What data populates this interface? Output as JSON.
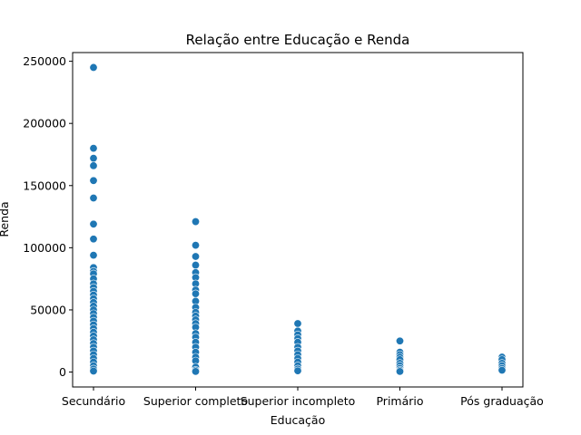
{
  "chart_data": {
    "type": "scatter",
    "title": "Relação entre Educação e Renda",
    "xlabel": "Educação",
    "ylabel": "Renda",
    "categories": [
      "Secundário",
      "Superior completo",
      "Superior incompleto",
      "Primário",
      "Pós graduação"
    ],
    "ylim": [
      -12000,
      257000
    ],
    "yticks": [
      0,
      50000,
      100000,
      150000,
      200000,
      250000
    ],
    "ytick_labels": [
      "0",
      "50000",
      "100000",
      "150000",
      "200000",
      "250000"
    ],
    "grid": false,
    "legend": "none",
    "marker_color": "#1f77b4",
    "series": [
      {
        "points": [
          {
            "x": "Secundário",
            "y": 245000
          },
          {
            "x": "Secundário",
            "y": 180000
          },
          {
            "x": "Secundário",
            "y": 172000
          },
          {
            "x": "Secundário",
            "y": 166000
          },
          {
            "x": "Secundário",
            "y": 154000
          },
          {
            "x": "Secundário",
            "y": 140000
          },
          {
            "x": "Secundário",
            "y": 119000
          },
          {
            "x": "Secundário",
            "y": 107000
          },
          {
            "x": "Secundário",
            "y": 94000
          },
          {
            "x": "Secundário",
            "y": 84000
          },
          {
            "x": "Secundário",
            "y": 81000
          },
          {
            "x": "Secundário",
            "y": 79000
          },
          {
            "x": "Secundário",
            "y": 75000
          },
          {
            "x": "Secundário",
            "y": 71000
          },
          {
            "x": "Secundário",
            "y": 68000
          },
          {
            "x": "Secundário",
            "y": 65000
          },
          {
            "x": "Secundário",
            "y": 62000
          },
          {
            "x": "Secundário",
            "y": 59000
          },
          {
            "x": "Secundário",
            "y": 56000
          },
          {
            "x": "Secundário",
            "y": 53000
          },
          {
            "x": "Secundário",
            "y": 50000
          },
          {
            "x": "Secundário",
            "y": 47000
          },
          {
            "x": "Secundário",
            "y": 44000
          },
          {
            "x": "Secundário",
            "y": 41000
          },
          {
            "x": "Secundário",
            "y": 38000
          },
          {
            "x": "Secundário",
            "y": 35000
          },
          {
            "x": "Secundário",
            "y": 32000
          },
          {
            "x": "Secundário",
            "y": 29000
          },
          {
            "x": "Secundário",
            "y": 26000
          },
          {
            "x": "Secundário",
            "y": 23000
          },
          {
            "x": "Secundário",
            "y": 20000
          },
          {
            "x": "Secundário",
            "y": 17000
          },
          {
            "x": "Secundário",
            "y": 14000
          },
          {
            "x": "Secundário",
            "y": 11000
          },
          {
            "x": "Secundário",
            "y": 8000
          },
          {
            "x": "Secundário",
            "y": 5000
          },
          {
            "x": "Secundário",
            "y": 2500
          },
          {
            "x": "Secundário",
            "y": 800
          },
          {
            "x": "Superior completo",
            "y": 121000
          },
          {
            "x": "Superior completo",
            "y": 102000
          },
          {
            "x": "Superior completo",
            "y": 93000
          },
          {
            "x": "Superior completo",
            "y": 86000
          },
          {
            "x": "Superior completo",
            "y": 80000
          },
          {
            "x": "Superior completo",
            "y": 76000
          },
          {
            "x": "Superior completo",
            "y": 71000
          },
          {
            "x": "Superior completo",
            "y": 66000
          },
          {
            "x": "Superior completo",
            "y": 63000
          },
          {
            "x": "Superior completo",
            "y": 57000
          },
          {
            "x": "Superior completo",
            "y": 52000
          },
          {
            "x": "Superior completo",
            "y": 48000
          },
          {
            "x": "Superior completo",
            "y": 45000
          },
          {
            "x": "Superior completo",
            "y": 42000
          },
          {
            "x": "Superior completo",
            "y": 39000
          },
          {
            "x": "Superior completo",
            "y": 36000
          },
          {
            "x": "Superior completo",
            "y": 31000
          },
          {
            "x": "Superior completo",
            "y": 28000
          },
          {
            "x": "Superior completo",
            "y": 24000
          },
          {
            "x": "Superior completo",
            "y": 20000
          },
          {
            "x": "Superior completo",
            "y": 16000
          },
          {
            "x": "Superior completo",
            "y": 12000
          },
          {
            "x": "Superior completo",
            "y": 9000
          },
          {
            "x": "Superior completo",
            "y": 4000
          },
          {
            "x": "Superior completo",
            "y": 1500
          },
          {
            "x": "Superior completo",
            "y": 500
          },
          {
            "x": "Superior incompleto",
            "y": 39000
          },
          {
            "x": "Superior incompleto",
            "y": 33000
          },
          {
            "x": "Superior incompleto",
            "y": 30000
          },
          {
            "x": "Superior incompleto",
            "y": 27000
          },
          {
            "x": "Superior incompleto",
            "y": 24000
          },
          {
            "x": "Superior incompleto",
            "y": 20000
          },
          {
            "x": "Superior incompleto",
            "y": 17000
          },
          {
            "x": "Superior incompleto",
            "y": 14000
          },
          {
            "x": "Superior incompleto",
            "y": 11000
          },
          {
            "x": "Superior incompleto",
            "y": 8000
          },
          {
            "x": "Superior incompleto",
            "y": 5000
          },
          {
            "x": "Superior incompleto",
            "y": 2500
          },
          {
            "x": "Superior incompleto",
            "y": 1000
          },
          {
            "x": "Primário",
            "y": 25000
          },
          {
            "x": "Primário",
            "y": 16000
          },
          {
            "x": "Primário",
            "y": 14000
          },
          {
            "x": "Primário",
            "y": 12000
          },
          {
            "x": "Primário",
            "y": 10000
          },
          {
            "x": "Primário",
            "y": 7000
          },
          {
            "x": "Primário",
            "y": 5000
          },
          {
            "x": "Primário",
            "y": 3000
          },
          {
            "x": "Primário",
            "y": 1500
          },
          {
            "x": "Primário",
            "y": 500
          },
          {
            "x": "Pós graduação",
            "y": 12000
          },
          {
            "x": "Pós graduação",
            "y": 10000
          },
          {
            "x": "Pós graduação",
            "y": 7000
          },
          {
            "x": "Pós graduação",
            "y": 5000
          },
          {
            "x": "Pós graduação",
            "y": 3000
          },
          {
            "x": "Pós graduação",
            "y": 1500
          }
        ]
      }
    ]
  }
}
